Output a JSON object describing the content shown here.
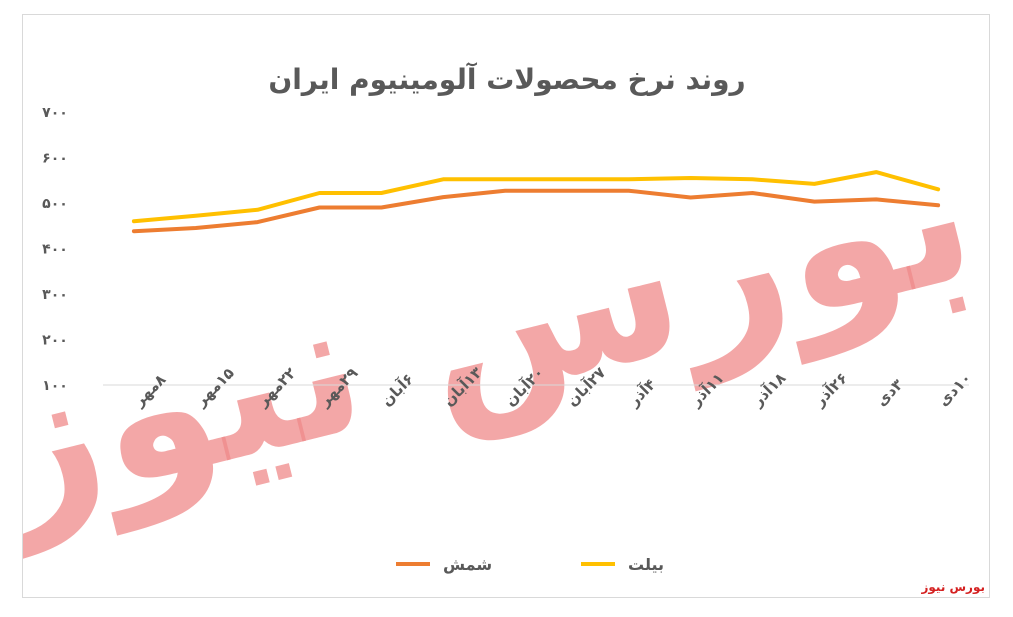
{
  "chart_data": {
    "type": "line",
    "title": "روند نرخ محصولات آلومینیوم ایران",
    "xlabel": "",
    "ylabel": "",
    "ylim": [
      100,
      700
    ],
    "yticks": [
      "۱۰۰",
      "۲۰۰",
      "۳۰۰",
      "۴۰۰",
      "۵۰۰",
      "۶۰۰",
      "۷۰۰"
    ],
    "grid": false,
    "legend_position": "bottom",
    "categories": [
      "۸مهر",
      "۱۵مهر",
      "۲۲مهر",
      "۲۹مهر",
      "۶آبان",
      "۱۳آبان",
      "۲۰آبان",
      "۲۷آبان",
      "۴آذر",
      "۱۱آذر",
      "۱۸آذر",
      "۲۶آذر",
      "۳دی",
      "۱۰دی"
    ],
    "series": [
      {
        "name": "شمش",
        "color": "#ed7d31",
        "values": [
          438,
          445,
          458,
          490,
          490,
          513,
          527,
          527,
          527,
          512,
          522,
          503,
          508,
          495
        ]
      },
      {
        "name": "بیلت",
        "color": "#ffc000",
        "values": [
          460,
          472,
          485,
          522,
          522,
          552,
          552,
          552,
          552,
          555,
          552,
          542,
          568,
          530
        ]
      }
    ]
  },
  "watermark": {
    "text": "بورس نیوز",
    "color": "#ef8a8a"
  },
  "credit": {
    "text": "بورس نیوز",
    "color": "#d42020"
  }
}
